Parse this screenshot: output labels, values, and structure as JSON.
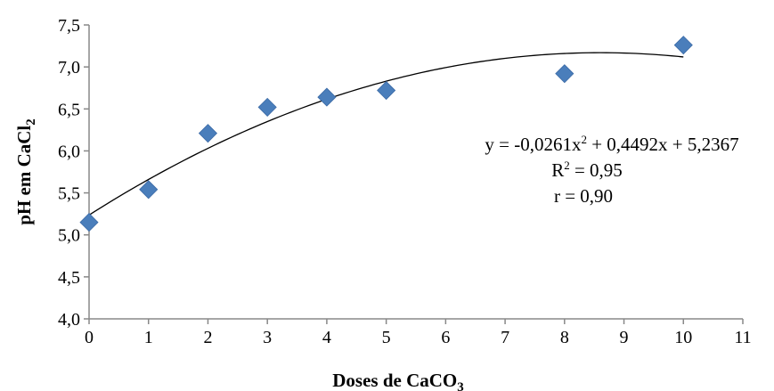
{
  "chart_data": {
    "type": "scatter",
    "xlabel": "Doses de CaCO",
    "xlabel_sub": "3",
    "ylabel": "pH em CaCl",
    "ylabel_sub": "2",
    "xlim": [
      0,
      11
    ],
    "ylim": [
      4.0,
      7.5
    ],
    "x_ticks": [
      "0",
      "1",
      "2",
      "3",
      "4",
      "5",
      "6",
      "7",
      "8",
      "9",
      "10",
      "11"
    ],
    "y_ticks": [
      "4,0",
      "4,5",
      "5,0",
      "5,5",
      "6,0",
      "6,5",
      "7,0",
      "7,5"
    ],
    "grid": false,
    "legend": "none",
    "marker": "diamond",
    "marker_color": "#4a7ebb",
    "points": [
      {
        "x": 0,
        "y": 5.15
      },
      {
        "x": 1,
        "y": 5.54
      },
      {
        "x": 2,
        "y": 6.21
      },
      {
        "x": 3,
        "y": 6.52
      },
      {
        "x": 4,
        "y": 6.64
      },
      {
        "x": 5,
        "y": 6.72
      },
      {
        "x": 8,
        "y": 6.92
      },
      {
        "x": 10,
        "y": 7.26
      }
    ],
    "trendline": {
      "type": "polynomial",
      "coefficients": [
        -0.0261,
        0.4492,
        5.2367
      ],
      "x_range": [
        0,
        10
      ],
      "color": "#000000"
    },
    "annotations": {
      "equation_pre": "y = -0,0261x",
      "equation_sup": "2",
      "equation_post": " + 0,4492x + 5,2367",
      "r2_pre": "R",
      "r2_sup": "2",
      "r2_post": " = 0,95",
      "r": "r = 0,90"
    }
  }
}
